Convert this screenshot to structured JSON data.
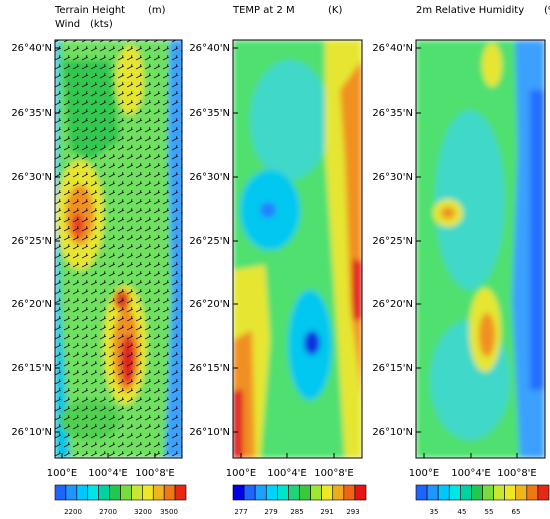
{
  "panels": [
    {
      "title": "Terrain Height",
      "unit": "(m)",
      "subtitle": "Wind",
      "subunit": "(kts)",
      "lat_labels": [
        "26°40'N",
        "26°35'N",
        "26°30'N",
        "26°25'N",
        "26°20'N",
        "26°15'N",
        "26°10'N"
      ],
      "lon_labels": [
        "100°E",
        "100°4'E",
        "100°8'E"
      ],
      "colorbar_labels": [
        "2200",
        "2700",
        "3200",
        "3500"
      ]
    },
    {
      "title": "TEMP at 2 M",
      "unit": "(K)",
      "lat_labels": [
        "26°40'N",
        "26°35'N",
        "26°30'N",
        "26°25'N",
        "26°20'N",
        "26°15'N",
        "26°10'N"
      ],
      "lon_labels": [
        "100°E",
        "100°4'E",
        "100°8'E"
      ],
      "colorbar_labels": [
        "277",
        "279",
        "285",
        "291",
        "293"
      ]
    },
    {
      "title": "2m Relative Humidity",
      "unit": "(%)",
      "lat_labels": [
        "26°40'N",
        "26°35'N",
        "26°30'N",
        "26°25'N",
        "26°20'N",
        "26°15'N",
        "26°10'N"
      ],
      "lon_labels": [
        "100°E",
        "100°4'E",
        "100°8'E"
      ],
      "colorbar_labels": [
        "35",
        "45",
        "55",
        "65"
      ]
    }
  ]
}
